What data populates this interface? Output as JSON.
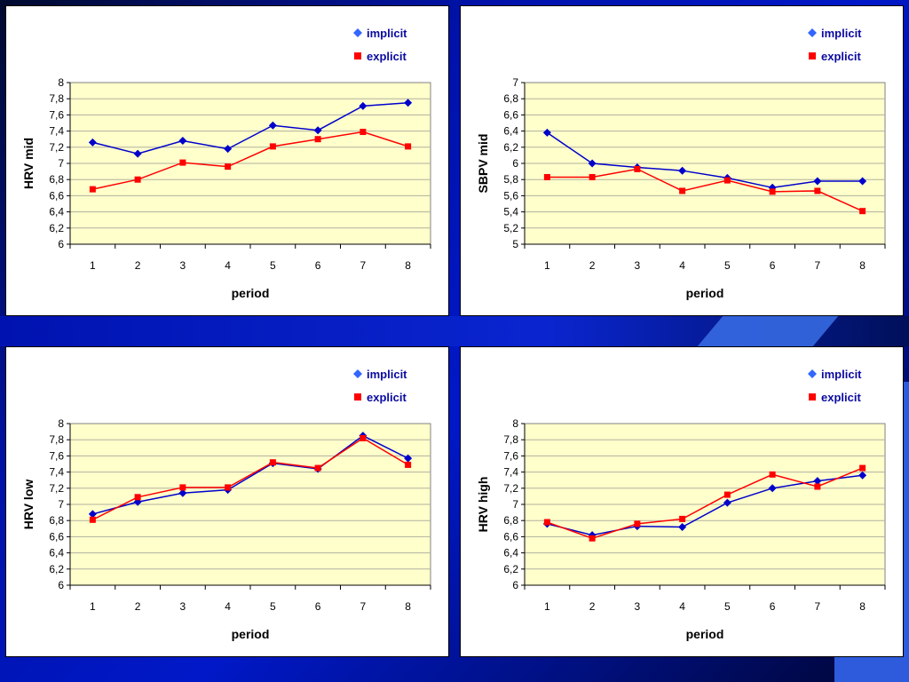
{
  "colors": {
    "implicit": "#0000cc",
    "explicit": "#ff0000",
    "plot_bg": "#ffffcc",
    "grid": "#b0b0a0"
  },
  "legend": {
    "implicit": "implicit",
    "explicit": "explicit"
  },
  "chart_data": [
    {
      "type": "line",
      "id": "hrv-mid",
      "xlabel": "period",
      "ylabel": "HRV mid",
      "x": [
        1,
        2,
        3,
        4,
        5,
        6,
        7,
        8
      ],
      "ylim": [
        6,
        8
      ],
      "ytick_step": 0.2,
      "ytick_labels": [
        "6",
        "6,2",
        "6,4",
        "6,6",
        "6,8",
        "7",
        "7,2",
        "7,4",
        "7,6",
        "7,8",
        "8"
      ],
      "series": [
        {
          "name": "implicit",
          "values": [
            7.26,
            7.12,
            7.28,
            7.18,
            7.47,
            7.41,
            7.71,
            7.75
          ]
        },
        {
          "name": "explicit",
          "values": [
            6.68,
            6.8,
            7.01,
            6.96,
            7.21,
            7.3,
            7.39,
            7.21
          ]
        }
      ],
      "legend_position": "top-right",
      "grid": true
    },
    {
      "type": "line",
      "id": "sbpv-mid",
      "xlabel": "period",
      "ylabel": "SBPV mid",
      "x": [
        1,
        2,
        3,
        4,
        5,
        6,
        7,
        8
      ],
      "ylim": [
        5,
        7
      ],
      "ytick_step": 0.2,
      "ytick_labels": [
        "5",
        "5,2",
        "5,4",
        "5,6",
        "5,8",
        "6",
        "6,2",
        "6,4",
        "6,6",
        "6,8",
        "7"
      ],
      "series": [
        {
          "name": "implicit",
          "values": [
            6.38,
            6.0,
            5.95,
            5.91,
            5.82,
            5.7,
            5.78,
            5.78
          ]
        },
        {
          "name": "explicit",
          "values": [
            5.83,
            5.83,
            5.93,
            5.66,
            5.79,
            5.65,
            5.66,
            5.41
          ]
        }
      ],
      "legend_position": "top-right",
      "grid": true
    },
    {
      "type": "line",
      "id": "hrv-low",
      "xlabel": "period",
      "ylabel": "HRV low",
      "x": [
        1,
        2,
        3,
        4,
        5,
        6,
        7,
        8
      ],
      "ylim": [
        6,
        8
      ],
      "ytick_step": 0.2,
      "ytick_labels": [
        "6",
        "6,2",
        "6,4",
        "6,6",
        "6,8",
        "7",
        "7,2",
        "7,4",
        "7,6",
        "7,8",
        "8"
      ],
      "series": [
        {
          "name": "implicit",
          "values": [
            6.88,
            7.03,
            7.14,
            7.18,
            7.51,
            7.44,
            7.85,
            7.57
          ]
        },
        {
          "name": "explicit",
          "values": [
            6.81,
            7.09,
            7.21,
            7.21,
            7.52,
            7.45,
            7.82,
            7.49
          ]
        }
      ],
      "legend_position": "top-right",
      "grid": true
    },
    {
      "type": "line",
      "id": "hrv-high",
      "xlabel": "period",
      "ylabel": "HRV high",
      "x": [
        1,
        2,
        3,
        4,
        5,
        6,
        7,
        8
      ],
      "ylim": [
        6,
        8
      ],
      "ytick_step": 0.2,
      "ytick_labels": [
        "6",
        "6,2",
        "6,4",
        "6,6",
        "6,8",
        "7",
        "7,2",
        "7,4",
        "7,6",
        "7,8",
        "8"
      ],
      "series": [
        {
          "name": "implicit",
          "values": [
            6.76,
            6.62,
            6.73,
            6.72,
            7.02,
            7.2,
            7.29,
            7.36
          ]
        },
        {
          "name": "explicit",
          "values": [
            6.78,
            6.58,
            6.76,
            6.82,
            7.12,
            7.37,
            7.22,
            7.45
          ]
        }
      ],
      "legend_position": "top-right",
      "grid": true
    }
  ]
}
